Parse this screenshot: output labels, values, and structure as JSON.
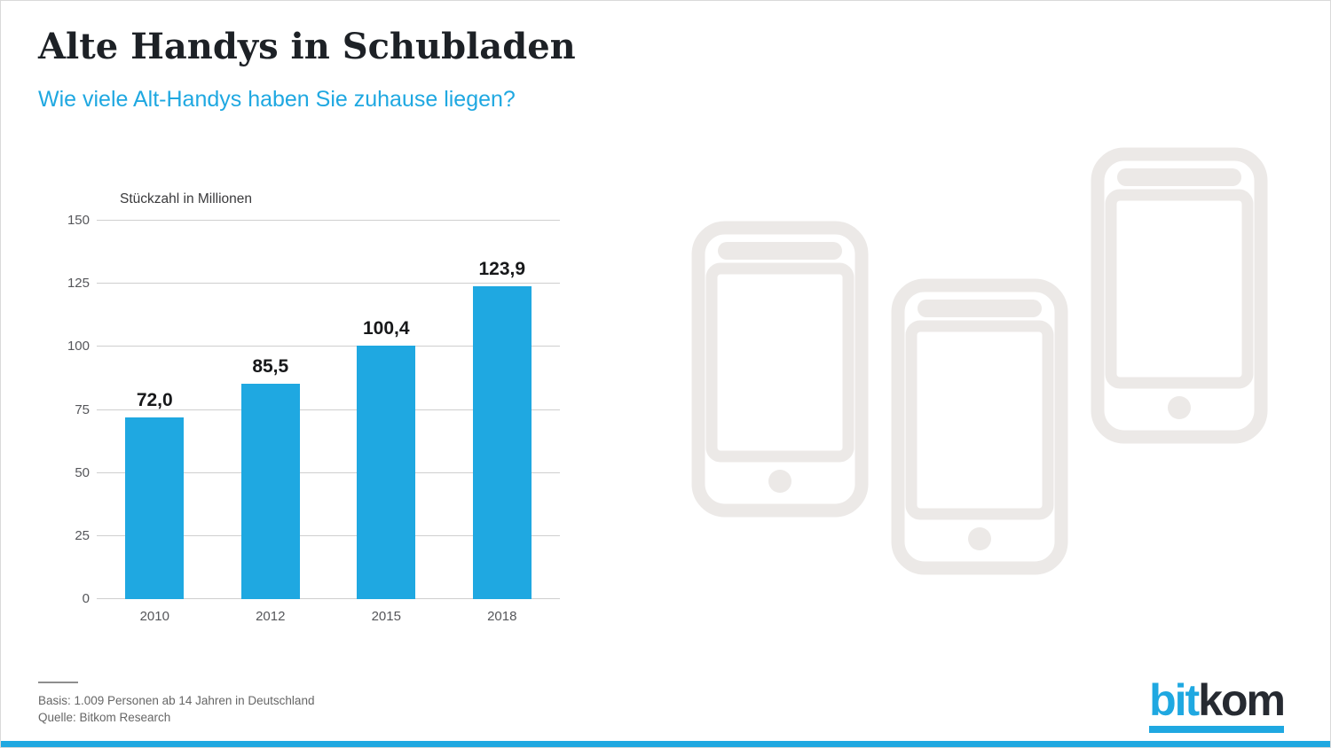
{
  "header": {
    "title": "Alte Handys in Schubladen",
    "subtitle": "Wie viele Alt-Handys haben Sie zuhause liegen?"
  },
  "chart_data": {
    "type": "bar",
    "title": "Stückzahl in Millionen",
    "categories": [
      "2010",
      "2012",
      "2015",
      "2018"
    ],
    "values": [
      72.0,
      85.5,
      100.4,
      123.9
    ],
    "value_labels": [
      "72,0",
      "85,5",
      "100,4",
      "123,9"
    ],
    "ylabel": "Stückzahl in Millionen",
    "xlabel": "",
    "ylim": [
      0,
      150
    ],
    "yticks": [
      0,
      25,
      50,
      75,
      100,
      125,
      150
    ],
    "grid": true,
    "legend": false,
    "bar_color": "#1fa8e1"
  },
  "decorations": {
    "phone_icons": [
      "phone-icon-left",
      "phone-icon-middle",
      "phone-icon-right"
    ]
  },
  "footer": {
    "basis": "Basis: 1.009 Personen ab 14 Jahren in Deutschland",
    "source": "Quelle: Bitkom Research"
  },
  "logo": {
    "text_blue": "bit",
    "text_dark": "kom"
  },
  "colors": {
    "accent": "#1fa8e1",
    "phone": "#ece9e7",
    "title": "#1d2126",
    "tick": "#55565a",
    "grid": "#cfcfcf"
  }
}
